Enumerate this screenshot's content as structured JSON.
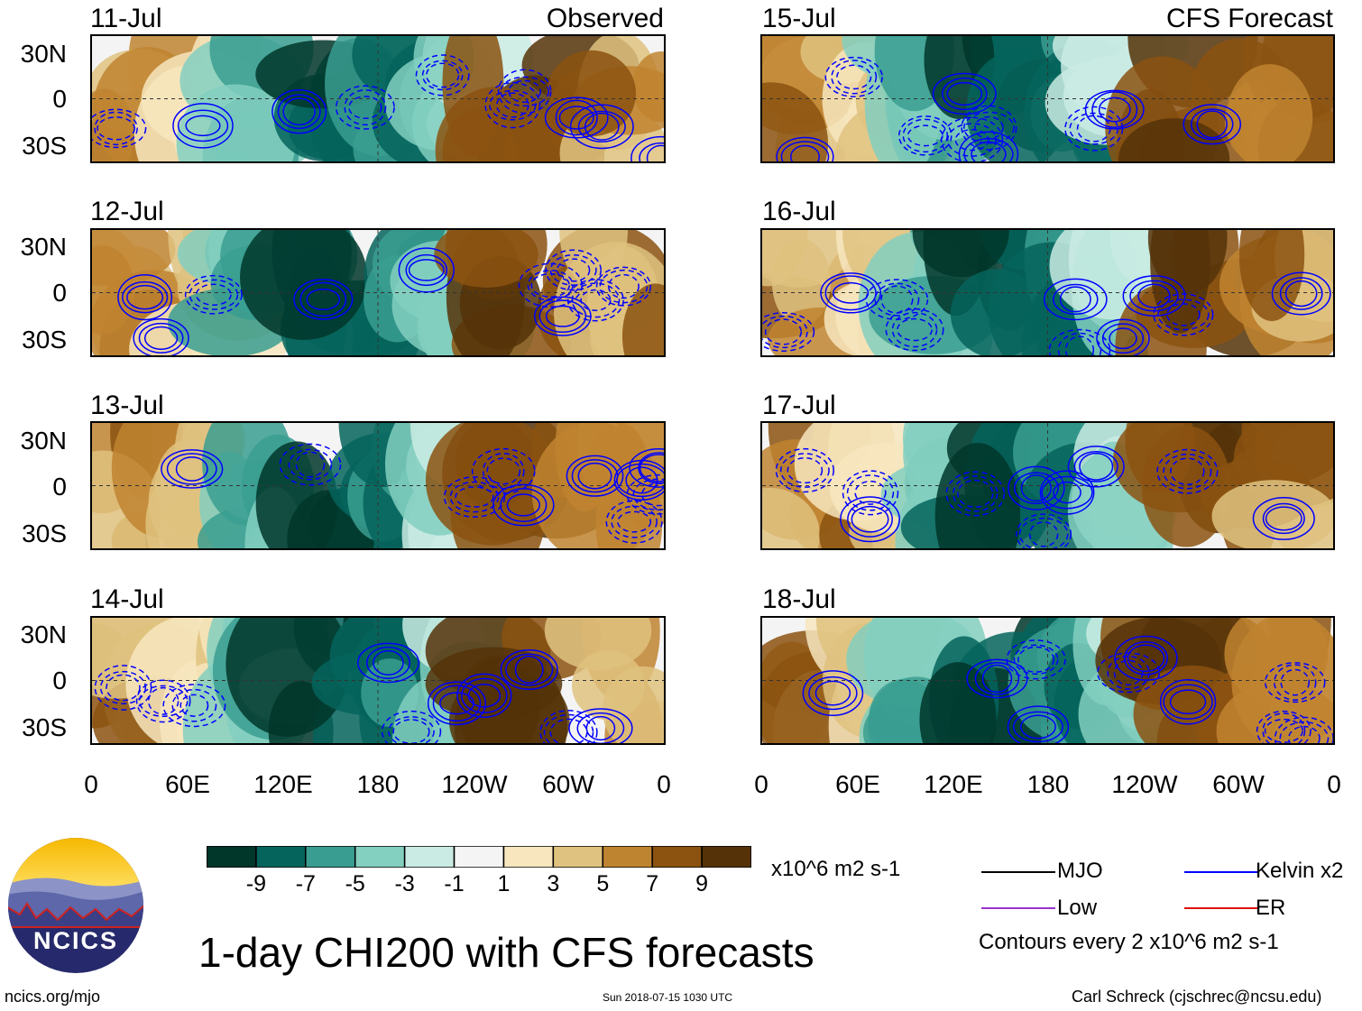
{
  "left_column": {
    "tag": "Observed",
    "dates": [
      "11-Jul",
      "12-Jul",
      "13-Jul",
      "14-Jul"
    ]
  },
  "right_column": {
    "tag": "CFS Forecast",
    "dates": [
      "15-Jul",
      "16-Jul",
      "17-Jul",
      "18-Jul"
    ]
  },
  "lat_labels": [
    "30N",
    "0",
    "30S"
  ],
  "lon_labels": [
    "0",
    "60E",
    "120E",
    "180",
    "120W",
    "60W",
    "0"
  ],
  "colorbar": {
    "units": "x10^6 m2 s-1",
    "tick_labels": [
      "-9",
      "-7",
      "-5",
      "-3",
      "-1",
      "1",
      "3",
      "5",
      "7",
      "9"
    ],
    "colors": [
      "#01362a",
      "#05645c",
      "#3a9d91",
      "#83cfc0",
      "#c9ebe3",
      "#f4f4f4",
      "#f7e6be",
      "#dfc27f",
      "#bf8430",
      "#8b5210",
      "#553208"
    ]
  },
  "legend": {
    "mjo": "MJO",
    "kelvin": "Kelvin x2",
    "low": "Low",
    "er": "ER",
    "contours": "Contours every 2 x10^6 m2 s-1",
    "colors": {
      "mjo": "#000000",
      "kelvin": "#0000ff",
      "low": "#9933cc",
      "er": "#dd1111"
    }
  },
  "title": "1-day CHI200 with CFS forecasts",
  "logo_text": "NCICS",
  "footer": {
    "left": "ncics.org/mjo",
    "center": "Sun 2018-07-15 1030 UTC",
    "right": "Carl Schreck (cjschrec@ncsu.edu)"
  }
}
